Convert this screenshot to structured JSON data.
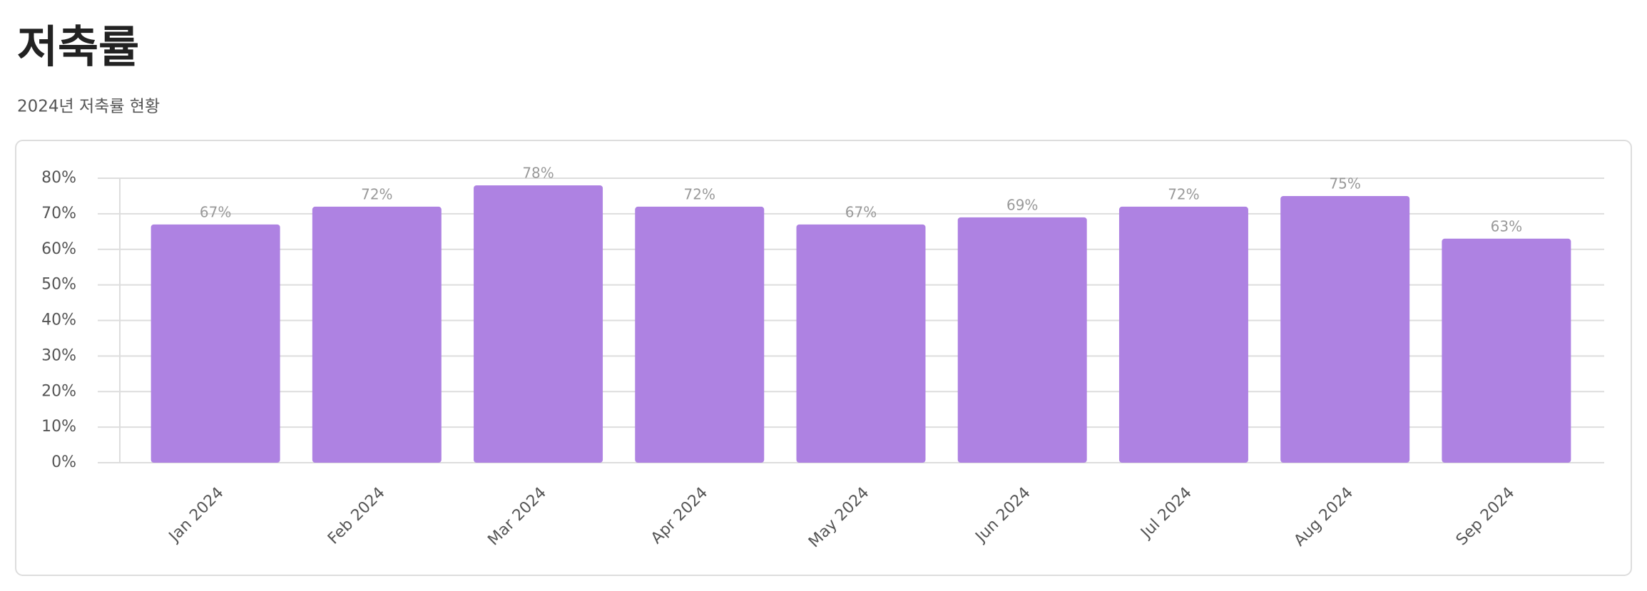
{
  "header": {
    "title": "저축률",
    "subtitle": "2024년 저축률 현황"
  },
  "chart_data": {
    "type": "bar",
    "categories": [
      "Jan 2024",
      "Feb 2024",
      "Mar 2024",
      "Apr 2024",
      "May 2024",
      "Jun 2024",
      "Jul 2024",
      "Aug 2024",
      "Sep 2024"
    ],
    "values": [
      67,
      72,
      78,
      72,
      67,
      69,
      72,
      75,
      63
    ],
    "value_labels": [
      "67%",
      "72%",
      "78%",
      "72%",
      "67%",
      "69%",
      "72%",
      "75%",
      "63%"
    ],
    "color": "#ae82e2",
    "ylim": [
      0,
      80
    ],
    "yticks": [
      {
        "value": 0,
        "label": "0%"
      },
      {
        "value": 10,
        "label": "10%"
      },
      {
        "value": 20,
        "label": "20%"
      },
      {
        "value": 30,
        "label": "30%"
      },
      {
        "value": 40,
        "label": "40%"
      },
      {
        "value": 50,
        "label": "50%"
      },
      {
        "value": 60,
        "label": "60%"
      },
      {
        "value": 70,
        "label": "70%"
      },
      {
        "value": 80,
        "label": "80%"
      }
    ],
    "grid": true
  }
}
